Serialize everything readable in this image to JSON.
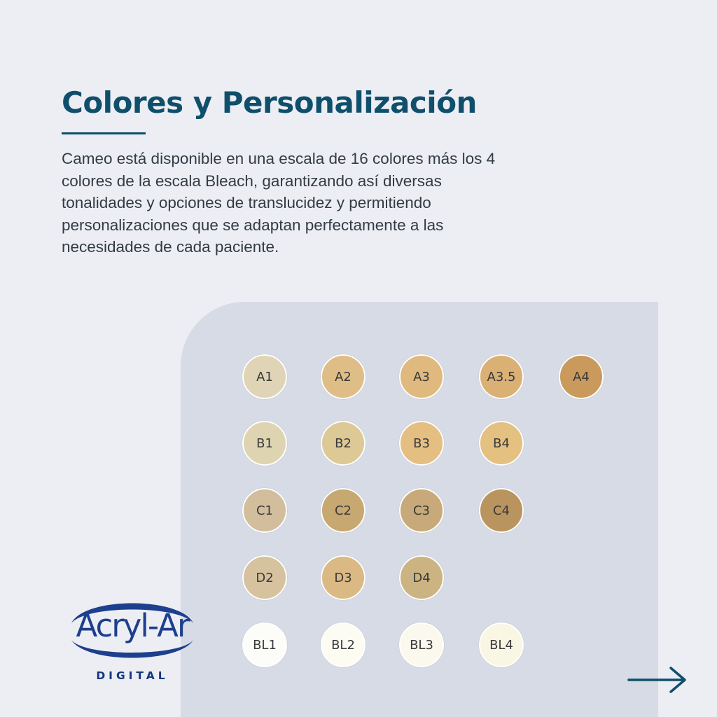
{
  "page": {
    "title": "Colores y Personalización",
    "description": "Cameo está disponible en una escala de 16 colores más los 4 colores de la escala Bleach, garantizando así diversas tonalidades y opciones de translucidez y permitiendo personalizaciones que se adaptan perfectamente a las necesidades de cada paciente."
  },
  "shade_rows": [
    [
      {
        "label": "A1",
        "color": "#e0d4b6"
      },
      {
        "label": "A2",
        "color": "#dfbd86"
      },
      {
        "label": "A3",
        "color": "#dfb97d"
      },
      {
        "label": "A3.5",
        "color": "#dab074"
      },
      {
        "label": "A4",
        "color": "#c99a5c"
      }
    ],
    [
      {
        "label": "B1",
        "color": "#dfd4b2"
      },
      {
        "label": "B2",
        "color": "#dcc995"
      },
      {
        "label": "B3",
        "color": "#e5be82"
      },
      {
        "label": "B4",
        "color": "#e4c081"
      }
    ],
    [
      {
        "label": "C1",
        "color": "#d2be9d"
      },
      {
        "label": "C2",
        "color": "#c7a871"
      },
      {
        "label": "C3",
        "color": "#c8a979"
      },
      {
        "label": "C4",
        "color": "#ba945f"
      }
    ],
    [
      {
        "label": "D2",
        "color": "#d6c29e"
      },
      {
        "label": "D3",
        "color": "#dbb984"
      },
      {
        "label": "D4",
        "color": "#cbb482"
      }
    ],
    [
      {
        "label": "BL1",
        "color": "#fcfcf9"
      },
      {
        "label": "BL2",
        "color": "#fdfcf3"
      },
      {
        "label": "BL3",
        "color": "#fbf9ee"
      },
      {
        "label": "BL4",
        "color": "#faf6e4"
      }
    ]
  ],
  "logo": {
    "name": "Acryl-Ar",
    "subtitle": "DIGITAL",
    "color": "#1e3f8e"
  },
  "nav": {
    "next_icon": "arrow-right-icon",
    "color": "#0f4f6b"
  }
}
